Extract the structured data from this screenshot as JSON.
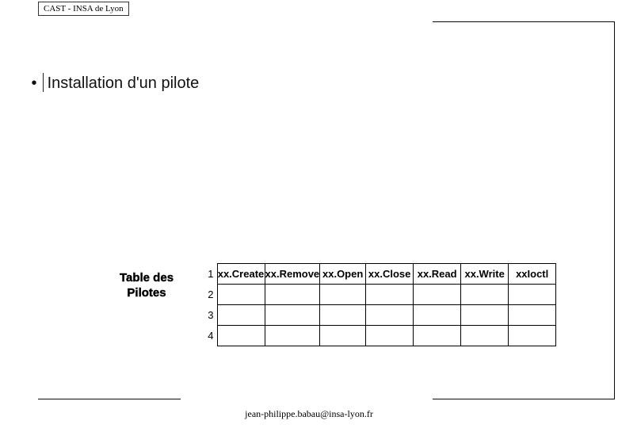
{
  "header": {
    "label": "CAST - INSA de Lyon"
  },
  "heading": {
    "bullet": "•",
    "text": "Installation d'un pilote"
  },
  "table": {
    "label_line1": "Table des",
    "label_line2": "Pilotes",
    "rownums": [
      "1",
      "2",
      "3",
      "4"
    ],
    "row1": {
      "c1": "xx.Create",
      "c2": "xx.Remove",
      "c3": "xx.Open",
      "c4": "xx.Close",
      "c5": "xx.Read",
      "c6": "xx.Write",
      "c7": "xxIoctl"
    }
  },
  "footer": {
    "email": "jean-philippe.babau@insa-lyon.fr"
  }
}
